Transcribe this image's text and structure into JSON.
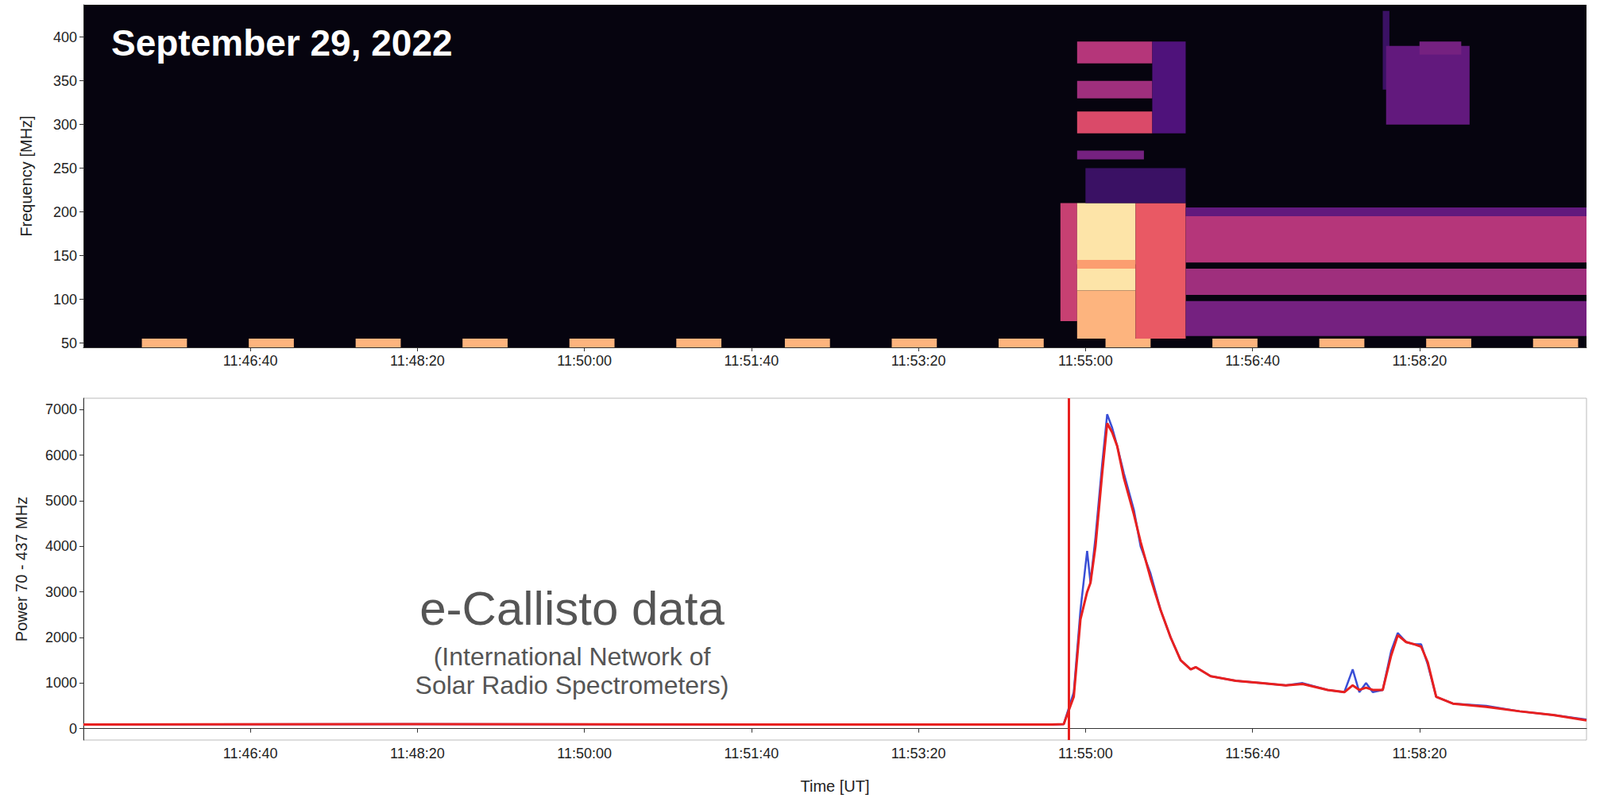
{
  "chart_data": [
    {
      "type": "heatmap",
      "title": "September 29, 2022",
      "ylabel": "Frequency [MHz]",
      "xlim": [
        42300,
        43200
      ],
      "xticks": [
        {
          "value": 42400,
          "label": "11:46:40"
        },
        {
          "value": 42500,
          "label": "11:48:20"
        },
        {
          "value": 42600,
          "label": "11:50:00"
        },
        {
          "value": 42700,
          "label": "11:51:40"
        },
        {
          "value": 42800,
          "label": "11:53:20"
        },
        {
          "value": 42900,
          "label": "11:55:00"
        },
        {
          "value": 43000,
          "label": "11:56:40"
        },
        {
          "value": 43100,
          "label": "11:58:20"
        }
      ],
      "ylim": [
        45,
        437
      ],
      "yticks": [
        50,
        100,
        150,
        200,
        250,
        300,
        350,
        400
      ],
      "zlim": [
        0,
        1
      ],
      "grid": false,
      "cells": [
        [
          42885,
          42895,
          75,
          210,
          0.55
        ],
        [
          42895,
          42930,
          140,
          210,
          0.95
        ],
        [
          42895,
          42930,
          110,
          135,
          0.95
        ],
        [
          42895,
          42930,
          135,
          145,
          0.8
        ],
        [
          42895,
          42930,
          55,
          110,
          0.85
        ],
        [
          42930,
          42960,
          55,
          210,
          0.65
        ],
        [
          42900,
          42960,
          210,
          250,
          0.2
        ],
        [
          42895,
          42940,
          370,
          395,
          0.5
        ],
        [
          42895,
          42940,
          330,
          350,
          0.45
        ],
        [
          42895,
          42940,
          290,
          315,
          0.6
        ],
        [
          42895,
          42935,
          260,
          270,
          0.35
        ],
        [
          42940,
          42960,
          290,
          395,
          0.25
        ],
        [
          42960,
          43200,
          142,
          195,
          0.5
        ],
        [
          42960,
          43200,
          195,
          205,
          0.3
        ],
        [
          42960,
          43200,
          105,
          135,
          0.45
        ],
        [
          42960,
          43200,
          58,
          98,
          0.35
        ],
        [
          43078,
          43082,
          340,
          430,
          0.2
        ],
        [
          43080,
          43130,
          300,
          390,
          0.3
        ],
        [
          43100,
          43125,
          380,
          395,
          0.35
        ],
        [
          42335,
          42362,
          45,
          55,
          0.85
        ],
        [
          42399,
          42426,
          45,
          55,
          0.85
        ],
        [
          42463,
          42490,
          45,
          55,
          0.85
        ],
        [
          42527,
          42554,
          45,
          55,
          0.85
        ],
        [
          42591,
          42618,
          45,
          55,
          0.85
        ],
        [
          42655,
          42682,
          45,
          55,
          0.85
        ],
        [
          42720,
          42747,
          45,
          55,
          0.85
        ],
        [
          42784,
          42811,
          45,
          55,
          0.85
        ],
        [
          42848,
          42875,
          45,
          55,
          0.85
        ],
        [
          42912,
          42939,
          45,
          55,
          0.85
        ],
        [
          42976,
          43003,
          45,
          55,
          0.85
        ],
        [
          43040,
          43067,
          45,
          55,
          0.85
        ],
        [
          43104,
          43131,
          45,
          55,
          0.85
        ],
        [
          43168,
          43195,
          45,
          55,
          0.85
        ]
      ]
    },
    {
      "type": "line",
      "xlabel": "Time [UT]",
      "ylabel": "Power 70 - 437 MHz",
      "xlim": [
        42300,
        43200
      ],
      "xticks": [
        {
          "value": 42400,
          "label": "11:46:40"
        },
        {
          "value": 42500,
          "label": "11:48:20"
        },
        {
          "value": 42600,
          "label": "11:50:00"
        },
        {
          "value": 42700,
          "label": "11:51:40"
        },
        {
          "value": 42800,
          "label": "11:53:20"
        },
        {
          "value": 42900,
          "label": "11:55:00"
        },
        {
          "value": 43000,
          "label": "11:56:40"
        },
        {
          "value": 43100,
          "label": "11:58:20"
        }
      ],
      "ylim": [
        -250,
        7250
      ],
      "yticks": [
        0,
        1000,
        2000,
        3000,
        4000,
        5000,
        6000,
        7000
      ],
      "grid": false,
      "x": [
        42300,
        42500,
        42700,
        42880,
        42887,
        42893,
        42897,
        42901,
        42903,
        42906,
        42910,
        42913,
        42916,
        42919,
        42923,
        42929,
        42933,
        42939,
        42945,
        42951,
        42957,
        42963,
        42966,
        42975,
        42990,
        43005,
        43020,
        43030,
        43045,
        43055,
        43060,
        43064,
        43068,
        43072,
        43078,
        43083,
        43087,
        43092,
        43097,
        43101,
        43105,
        43110,
        43120,
        43140,
        43160,
        43180,
        43200
      ],
      "series": [
        {
          "color": "#3a4fd6",
          "line_style": "solid",
          "values": [
            90,
            100,
            90,
            90,
            100,
            800,
            2600,
            3900,
            3200,
            4200,
            5800,
            6900,
            6600,
            6200,
            5600,
            4800,
            4000,
            3400,
            2600,
            2000,
            1500,
            1300,
            1350,
            1150,
            1050,
            1000,
            950,
            1000,
            850,
            800,
            1300,
            800,
            1000,
            800,
            850,
            1700,
            2100,
            1900,
            1850,
            1850,
            1400,
            700,
            550,
            500,
            380,
            300,
            200
          ]
        },
        {
          "color": "#e8201f",
          "line_style": "solid",
          "values": [
            90,
            100,
            90,
            90,
            100,
            700,
            2400,
            3000,
            3200,
            4000,
            5600,
            6700,
            6500,
            6200,
            5500,
            4700,
            4100,
            3300,
            2600,
            2000,
            1500,
            1300,
            1350,
            1150,
            1050,
            1000,
            950,
            980,
            850,
            800,
            950,
            850,
            900,
            850,
            850,
            1600,
            2050,
            1900,
            1850,
            1800,
            1450,
            700,
            550,
            480,
            380,
            300,
            180
          ]
        }
      ],
      "vline": {
        "x": 42890,
        "color": "#e8201f"
      },
      "annotations": [
        "e-Callisto data",
        "(International Network of Solar Radio Spectrometers)"
      ]
    }
  ]
}
